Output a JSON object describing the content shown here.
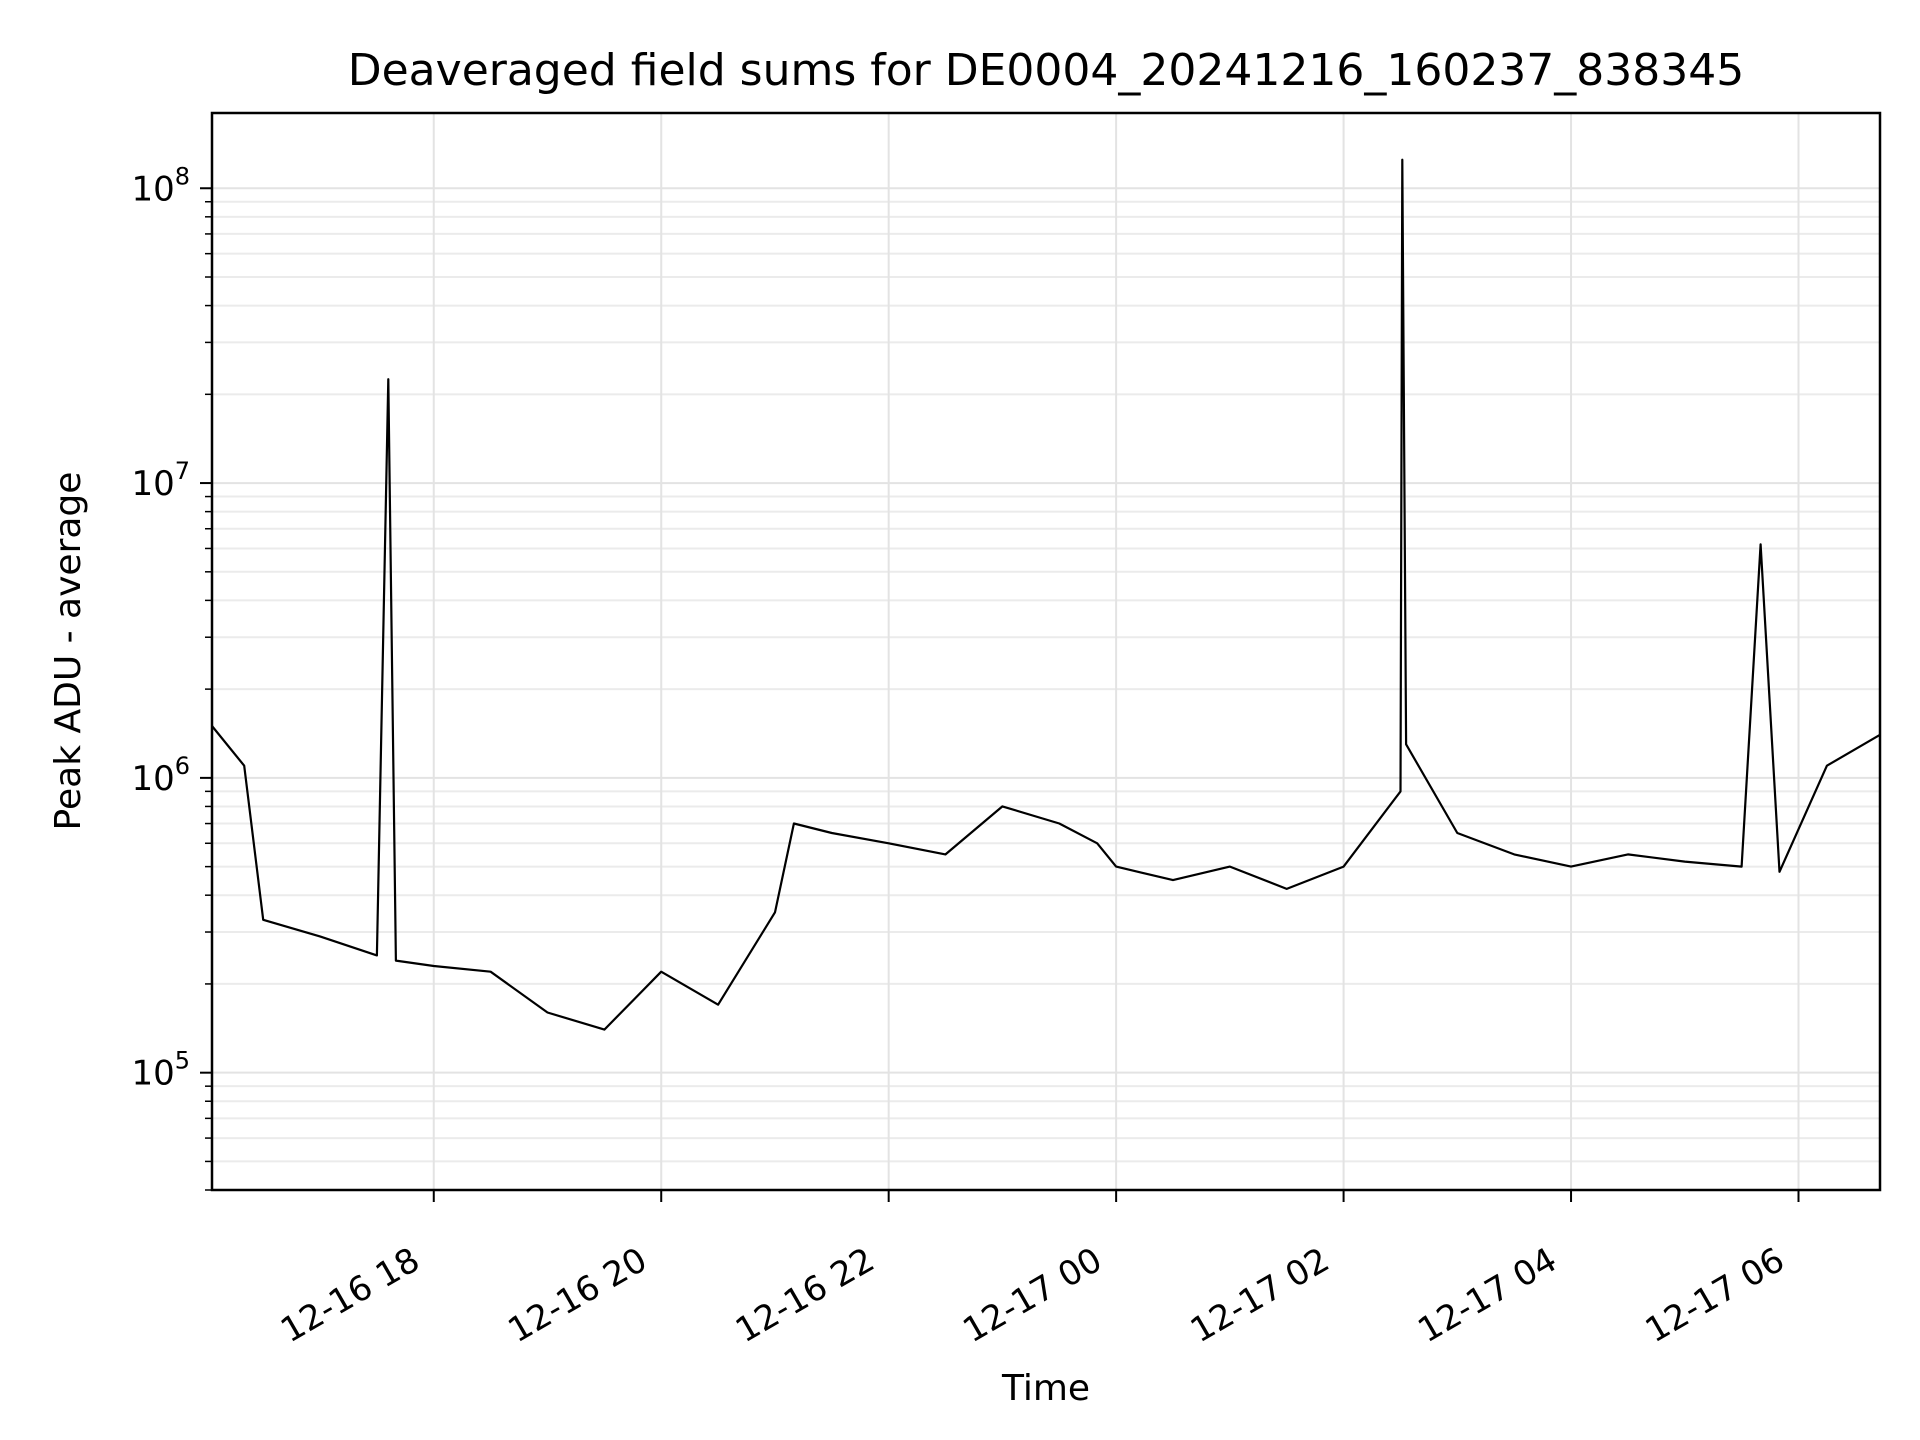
{
  "chart_data": {
    "type": "line",
    "title": "Deaveraged field sums for DE0004_20241216_160237_838345",
    "xlabel": "Time",
    "ylabel": "Peak ADU - average",
    "yscale": "log",
    "ylim": [
      40000,
      180000000
    ],
    "xlim": [
      "2024-12-16T16:03",
      "2024-12-17T06:43"
    ],
    "grid": true,
    "x_ticks": [
      {
        "t": "2024-12-16T18:00",
        "label": "12-16 18"
      },
      {
        "t": "2024-12-16T20:00",
        "label": "12-16 20"
      },
      {
        "t": "2024-12-16T22:00",
        "label": "12-16 22"
      },
      {
        "t": "2024-12-17T00:00",
        "label": "12-17 00"
      },
      {
        "t": "2024-12-17T02:00",
        "label": "12-17 02"
      },
      {
        "t": "2024-12-17T04:00",
        "label": "12-17 04"
      },
      {
        "t": "2024-12-17T06:00",
        "label": "12-17 06"
      }
    ],
    "y_ticks": [
      {
        "value": 100000,
        "base": "10",
        "exp": "5"
      },
      {
        "value": 1000000,
        "base": "10",
        "exp": "6"
      },
      {
        "value": 10000000,
        "base": "10",
        "exp": "7"
      },
      {
        "value": 100000000,
        "base": "10",
        "exp": "8"
      }
    ],
    "series": [
      {
        "line_color": "#000000",
        "points": [
          {
            "t": "2024-12-16T16:03",
            "y": 1500000
          },
          {
            "t": "2024-12-16T16:20",
            "y": 1100000
          },
          {
            "t": "2024-12-16T16:30",
            "y": 330000
          },
          {
            "t": "2024-12-16T17:00",
            "y": 290000
          },
          {
            "t": "2024-12-16T17:30",
            "y": 250000
          },
          {
            "t": "2024-12-16T17:36",
            "y": 22500000
          },
          {
            "t": "2024-12-16T17:40",
            "y": 240000
          },
          {
            "t": "2024-12-16T18:00",
            "y": 230000
          },
          {
            "t": "2024-12-16T18:30",
            "y": 220000
          },
          {
            "t": "2024-12-16T19:00",
            "y": 160000
          },
          {
            "t": "2024-12-16T19:30",
            "y": 140000
          },
          {
            "t": "2024-12-16T20:00",
            "y": 220000
          },
          {
            "t": "2024-12-16T20:30",
            "y": 170000
          },
          {
            "t": "2024-12-16T21:00",
            "y": 350000
          },
          {
            "t": "2024-12-16T21:10",
            "y": 700000
          },
          {
            "t": "2024-12-16T21:30",
            "y": 650000
          },
          {
            "t": "2024-12-16T22:00",
            "y": 600000
          },
          {
            "t": "2024-12-16T22:30",
            "y": 550000
          },
          {
            "t": "2024-12-16T23:00",
            "y": 800000
          },
          {
            "t": "2024-12-16T23:30",
            "y": 700000
          },
          {
            "t": "2024-12-16T23:50",
            "y": 600000
          },
          {
            "t": "2024-12-17T00:00",
            "y": 500000
          },
          {
            "t": "2024-12-17T00:30",
            "y": 450000
          },
          {
            "t": "2024-12-17T01:00",
            "y": 500000
          },
          {
            "t": "2024-12-17T01:30",
            "y": 420000
          },
          {
            "t": "2024-12-17T02:00",
            "y": 500000
          },
          {
            "t": "2024-12-17T02:30",
            "y": 900000
          },
          {
            "t": "2024-12-17T02:31",
            "y": 125000000
          },
          {
            "t": "2024-12-17T02:33",
            "y": 1300000
          },
          {
            "t": "2024-12-17T03:00",
            "y": 650000
          },
          {
            "t": "2024-12-17T03:30",
            "y": 550000
          },
          {
            "t": "2024-12-17T04:00",
            "y": 500000
          },
          {
            "t": "2024-12-17T04:30",
            "y": 550000
          },
          {
            "t": "2024-12-17T05:00",
            "y": 520000
          },
          {
            "t": "2024-12-17T05:30",
            "y": 500000
          },
          {
            "t": "2024-12-17T05:40",
            "y": 6200000
          },
          {
            "t": "2024-12-17T05:50",
            "y": 480000
          },
          {
            "t": "2024-12-17T06:15",
            "y": 1100000
          },
          {
            "t": "2024-12-17T06:43",
            "y": 1400000
          }
        ]
      }
    ]
  }
}
